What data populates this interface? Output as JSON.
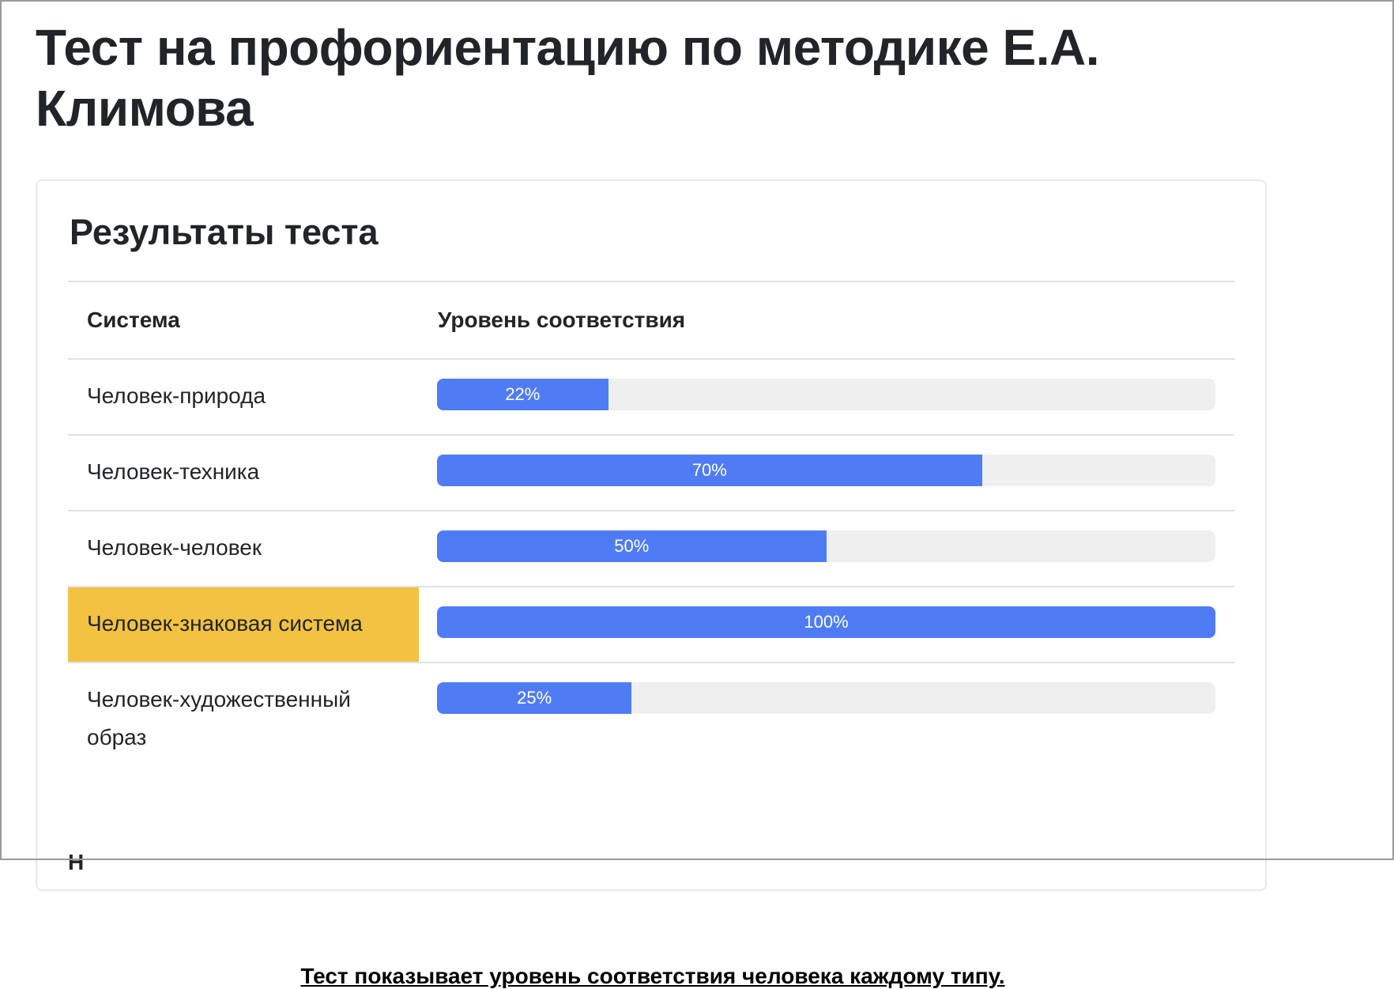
{
  "page": {
    "title": "Тест на профориентацию по методике Е.А. Климова"
  },
  "results": {
    "heading": "Результаты теста",
    "columns": {
      "system": "Система",
      "level": "Уровень соответствия"
    },
    "rows": [
      {
        "system": "Человек-природа",
        "percent": 22,
        "label": "22%",
        "highlighted": false
      },
      {
        "system": "Человек-техника",
        "percent": 70,
        "label": "70%",
        "highlighted": false
      },
      {
        "system": "Человек-человек",
        "percent": 50,
        "label": "50%",
        "highlighted": false
      },
      {
        "system": "Человек-знаковая система",
        "percent": 100,
        "label": "100%",
        "highlighted": true
      },
      {
        "system": "Человек-художественный образ",
        "percent": 25,
        "label": "25%",
        "highlighted": false
      }
    ],
    "footnote": "Тест показывает уровень соответствия человека каждому типу.",
    "cutoff_text": "Н"
  },
  "colors": {
    "bar_fill": "#4f7cf5",
    "bar_track": "#efefef",
    "highlight": "#f3c241",
    "text": "#212529",
    "divider": "#dee2e6"
  }
}
